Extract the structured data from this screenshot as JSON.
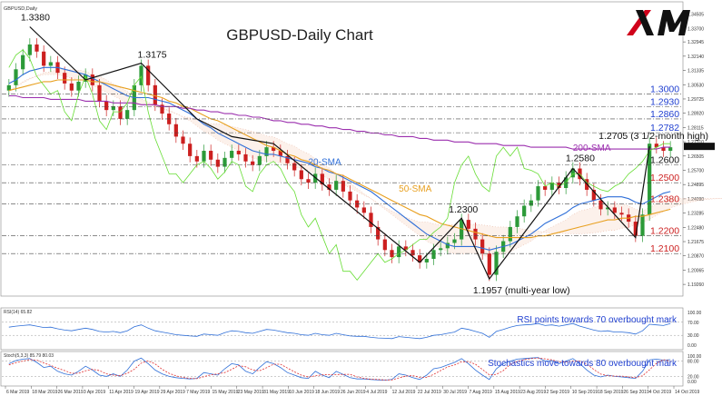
{
  "window": {
    "symbol_tag": "GBPUSD,Daily"
  },
  "chart_title": "GBPUSD-Daily Chart",
  "brand": {
    "name": "XM",
    "color": "#000000",
    "accent": "#d0021b"
  },
  "chart_data": [
    {
      "type": "line",
      "panel": "price",
      "title": "GBPUSD-Daily Chart",
      "x_tick_labels": [
        "6 Mar 2019",
        "18 Mar 2019",
        "26 Mar 2019",
        "3 Apr 2019",
        "11 Apr 2019",
        "19 Apr 2019",
        "29 Apr 2019",
        "7 May 2019",
        "15 May 2019",
        "23 May 2019",
        "31 May 2019",
        "10 Jun 2019",
        "18 Jun 2019",
        "26 Jun 2019",
        "4 Jul 2019",
        "12 Jul 2019",
        "22 Jul 2019",
        "30 Jul 2019",
        "7 Aug 2019",
        "15 Aug 2019",
        "23 Aug 2019",
        "2 Sep 2019",
        "10 Sep 2019",
        "18 Sep 2019",
        "26 Sep 2019",
        "4 Oct 2019",
        "14 Oct 2019"
      ],
      "y_tick_labels": [
        "1.34505",
        "1.33700",
        "1.32945",
        "1.32140",
        "1.31335",
        "1.30530",
        "1.29725",
        "1.28920",
        "1.28115",
        "1.27310",
        "1.26505",
        "1.25700",
        "1.24895",
        "1.24090",
        "1.23285",
        "1.22480",
        "1.21675",
        "1.20870",
        "1.20065",
        "1.19260"
      ],
      "ylim": [
        1.186,
        1.349
      ],
      "grid": false,
      "close": [
        1.305,
        1.314,
        1.322,
        1.328,
        1.324,
        1.316,
        1.318,
        1.312,
        1.306,
        1.302,
        1.307,
        1.311,
        1.305,
        1.296,
        1.291,
        1.293,
        1.286,
        1.291,
        1.305,
        1.316,
        1.305,
        1.294,
        1.289,
        1.283,
        1.276,
        1.272,
        1.265,
        1.262,
        1.268,
        1.263,
        1.259,
        1.264,
        1.268,
        1.266,
        1.262,
        1.26,
        1.265,
        1.27,
        1.268,
        1.265,
        1.261,
        1.257,
        1.252,
        1.25,
        1.255,
        1.249,
        1.246,
        1.251,
        1.245,
        1.24,
        1.236,
        1.233,
        1.225,
        1.218,
        1.212,
        1.208,
        1.214,
        1.212,
        1.209,
        1.205,
        1.207,
        1.212,
        1.213,
        1.216,
        1.218,
        1.229,
        1.224,
        1.218,
        1.21,
        1.198,
        1.211,
        1.217,
        1.225,
        1.231,
        1.237,
        1.24,
        1.248,
        1.246,
        1.25,
        1.247,
        1.253,
        1.258,
        1.252,
        1.246,
        1.24,
        1.235,
        1.236,
        1.233,
        1.232,
        1.228,
        1.22,
        1.232,
        1.272,
        1.27,
        1.268,
        1.27
      ],
      "series": [
        {
          "name": "20-SMA",
          "color": "#2f6fd8",
          "values": [
            1.306,
            1.308,
            1.311,
            1.313,
            1.314,
            1.315,
            1.315,
            1.315,
            1.314,
            1.313,
            1.312,
            1.311,
            1.309,
            1.307,
            1.305,
            1.303,
            1.301,
            1.299,
            1.298,
            1.298,
            1.298,
            1.297,
            1.296,
            1.295,
            1.293,
            1.291,
            1.289,
            1.286,
            1.283,
            1.281,
            1.278,
            1.276,
            1.274,
            1.272,
            1.27,
            1.268,
            1.267,
            1.266,
            1.266,
            1.265,
            1.264,
            1.263,
            1.262,
            1.261,
            1.259,
            1.258,
            1.256,
            1.255,
            1.253,
            1.251,
            1.249,
            1.247,
            1.245,
            1.242,
            1.239,
            1.236,
            1.233,
            1.23,
            1.227,
            1.224,
            1.221,
            1.219,
            1.217,
            1.215,
            1.214,
            1.214,
            1.214,
            1.214,
            1.213,
            1.212,
            1.213,
            1.214,
            1.215,
            1.217,
            1.219,
            1.221,
            1.224,
            1.227,
            1.229,
            1.231,
            1.233,
            1.236,
            1.238,
            1.239,
            1.24,
            1.241,
            1.242,
            1.242,
            1.242,
            1.241,
            1.239,
            1.238,
            1.24,
            1.242,
            1.244,
            1.245
          ]
        },
        {
          "name": "50-SMA",
          "color": "#e8a020",
          "values": [
            1.302,
            1.303,
            1.304,
            1.305,
            1.306,
            1.307,
            1.307,
            1.308,
            1.308,
            1.308,
            1.308,
            1.308,
            1.307,
            1.307,
            1.306,
            1.305,
            1.304,
            1.303,
            1.302,
            1.301,
            1.3,
            1.299,
            1.298,
            1.296,
            1.295,
            1.293,
            1.292,
            1.29,
            1.288,
            1.286,
            1.285,
            1.283,
            1.281,
            1.279,
            1.277,
            1.275,
            1.273,
            1.271,
            1.27,
            1.268,
            1.266,
            1.265,
            1.263,
            1.262,
            1.26,
            1.258,
            1.257,
            1.255,
            1.254,
            1.252,
            1.25,
            1.248,
            1.246,
            1.244,
            1.242,
            1.24,
            1.238,
            1.236,
            1.234,
            1.232,
            1.231,
            1.229,
            1.227,
            1.226,
            1.225,
            1.224,
            1.223,
            1.222,
            1.221,
            1.22,
            1.219,
            1.219,
            1.219,
            1.219,
            1.219,
            1.219,
            1.22,
            1.22,
            1.221,
            1.222,
            1.223,
            1.224,
            1.225,
            1.226,
            1.227,
            1.228,
            1.229,
            1.229,
            1.23,
            1.23,
            1.231,
            1.231,
            1.232,
            1.233,
            1.234,
            1.235
          ]
        },
        {
          "name": "200-SMA",
          "color": "#9b2fae",
          "values": [
            1.299,
            1.299,
            1.298,
            1.298,
            1.298,
            1.298,
            1.297,
            1.297,
            1.297,
            1.297,
            1.297,
            1.296,
            1.296,
            1.296,
            1.296,
            1.295,
            1.295,
            1.295,
            1.295,
            1.294,
            1.294,
            1.294,
            1.293,
            1.293,
            1.293,
            1.292,
            1.292,
            1.291,
            1.291,
            1.29,
            1.29,
            1.289,
            1.289,
            1.288,
            1.288,
            1.287,
            1.287,
            1.286,
            1.285,
            1.285,
            1.284,
            1.284,
            1.283,
            1.283,
            1.282,
            1.282,
            1.281,
            1.281,
            1.28,
            1.28,
            1.279,
            1.279,
            1.278,
            1.278,
            1.277,
            1.277,
            1.276,
            1.276,
            1.276,
            1.275,
            1.275,
            1.274,
            1.274,
            1.274,
            1.273,
            1.273,
            1.273,
            1.272,
            1.272,
            1.272,
            1.272,
            1.271,
            1.271,
            1.271,
            1.271,
            1.27,
            1.27,
            1.27,
            1.27,
            1.27,
            1.27,
            1.269,
            1.269,
            1.269,
            1.269,
            1.269,
            1.269,
            1.269,
            1.269,
            1.269,
            1.269,
            1.269,
            1.269,
            1.269,
            1.27,
            1.27
          ]
        },
        {
          "name": "",
          "color": "#66dd33",
          "values": [
            1.315,
            1.322,
            1.325,
            1.32,
            1.31,
            1.305,
            1.3,
            1.302,
            1.29,
            1.285,
            1.3,
            1.31,
            1.3,
            1.285,
            1.28,
            1.29,
            1.29,
            1.295,
            1.305,
            1.31,
            1.29,
            1.275,
            1.265,
            1.255,
            1.255,
            1.25,
            1.255,
            1.26,
            1.262,
            1.258,
            1.252,
            1.256,
            1.262,
            1.26,
            1.248,
            1.245,
            1.255,
            1.26,
            1.262,
            1.258,
            1.25,
            1.245,
            1.232,
            1.225,
            1.23,
            1.22,
            1.21,
            1.215,
            1.2,
            1.2,
            1.195,
            1.2,
            1.205,
            1.21,
            1.205,
            1.207,
            1.21,
            1.212,
            1.215,
            1.218,
            1.218,
            1.222,
            1.225,
            1.23,
            1.25,
            1.26,
            1.265,
            1.255,
            1.248,
            1.245,
            1.265,
            1.27,
            1.265,
            1.27,
            1.258,
            1.257,
            1.255,
            1.248,
            1.25,
            1.248,
            1.25,
            1.255,
            1.255,
            1.25,
            1.248,
            1.246,
            1.245,
            1.248,
            1.25,
            1.255,
            1.258,
            1.262,
            1.268,
            1.27,
            1.272,
            1.272
          ]
        }
      ],
      "horizontal_levels": [
        {
          "value": 1.3,
          "label": "1.3000"
        },
        {
          "value": 1.293,
          "label": "1.2930"
        },
        {
          "value": 1.286,
          "label": "1.2860"
        },
        {
          "value": 1.2782,
          "label": "1.2782"
        },
        {
          "value": 1.26,
          "label": "1.2600"
        },
        {
          "value": 1.25,
          "label": "1.2500"
        },
        {
          "value": 1.238,
          "label": "1.2380"
        },
        {
          "value": 1.22,
          "label": "1.2200"
        },
        {
          "value": 1.21,
          "label": "1.2100"
        }
      ],
      "swing_points": [
        {
          "label": "1.3380",
          "value": 1.338,
          "index": 3
        },
        {
          "label": "1.3175",
          "value": 1.3175,
          "index": 19
        },
        {
          "label": "1.2300",
          "value": 1.23,
          "index": 65
        },
        {
          "label": "1.2580",
          "value": 1.258,
          "index": 81
        },
        {
          "label": "1.1957 (multi-year low)",
          "value": 1.1957,
          "index": 69
        },
        {
          "label": "1.2705 (3 1/2-month high)",
          "value": 1.2705,
          "index": 92
        }
      ],
      "annotations": [
        "20-SMA",
        "50-SMA",
        "200-SMA"
      ]
    },
    {
      "type": "line",
      "panel": "rsi",
      "title": "RSI(14) 65.82",
      "y_tick_labels": [
        "100.00",
        "70.00",
        "30.00",
        "0.00"
      ],
      "ylim": [
        0,
        100
      ],
      "annotation": "RSI points towards 70 overbought mark",
      "series": [
        {
          "name": "RSI(14)",
          "color": "#2f6fd8",
          "values": [
            55,
            58,
            60,
            62,
            58,
            54,
            55,
            50,
            46,
            44,
            48,
            52,
            48,
            42,
            40,
            42,
            38,
            44,
            56,
            62,
            52,
            44,
            40,
            36,
            32,
            30,
            28,
            27,
            34,
            32,
            30,
            38,
            44,
            42,
            38,
            36,
            42,
            48,
            46,
            42,
            38,
            36,
            32,
            30,
            36,
            32,
            30,
            36,
            32,
            28,
            27,
            27,
            24,
            22,
            21,
            20,
            26,
            24,
            22,
            20,
            24,
            30,
            32,
            36,
            40,
            52,
            48,
            42,
            36,
            24,
            42,
            48,
            55,
            60,
            62,
            63,
            66,
            60,
            62,
            58,
            62,
            66,
            58,
            52,
            46,
            42,
            44,
            40,
            40,
            38,
            34,
            44,
            64,
            62,
            60,
            65.82
          ]
        }
      ]
    },
    {
      "type": "line",
      "panel": "stochastics",
      "title": "Stoch(5,3,3) 85.79 80.03",
      "y_tick_labels": [
        "100.00",
        "80.00",
        "20.00",
        "0.00"
      ],
      "ylim": [
        0,
        100
      ],
      "annotation": "Stochastics move towards 80 overbought mark",
      "series": [
        {
          "name": "Stoch %K",
          "color": "#2f6fd8",
          "values": [
            70,
            82,
            88,
            90,
            75,
            55,
            60,
            40,
            30,
            25,
            40,
            60,
            45,
            25,
            20,
            30,
            20,
            45,
            80,
            92,
            70,
            45,
            30,
            20,
            15,
            12,
            10,
            12,
            35,
            30,
            25,
            50,
            70,
            65,
            40,
            30,
            55,
            78,
            70,
            55,
            35,
            25,
            15,
            12,
            40,
            25,
            15,
            40,
            28,
            15,
            10,
            10,
            8,
            6,
            5,
            8,
            30,
            25,
            15,
            8,
            25,
            50,
            55,
            65,
            75,
            90,
            70,
            45,
            25,
            8,
            50,
            70,
            80,
            88,
            90,
            92,
            94,
            80,
            82,
            70,
            80,
            90,
            70,
            45,
            25,
            18,
            25,
            20,
            18,
            15,
            12,
            40,
            85,
            88,
            84,
            85.79
          ]
        },
        {
          "name": "Stoch %D",
          "color": "#e03030",
          "values": [
            65,
            74,
            80,
            86,
            84,
            73,
            63,
            52,
            43,
            32,
            32,
            42,
            48,
            43,
            30,
            25,
            23,
            32,
            48,
            72,
            81,
            69,
            48,
            32,
            22,
            16,
            12,
            11,
            19,
            26,
            30,
            35,
            48,
            62,
            58,
            45,
            42,
            54,
            68,
            68,
            53,
            38,
            25,
            17,
            22,
            26,
            27,
            27,
            28,
            28,
            18,
            12,
            9,
            8,
            6,
            6,
            14,
            21,
            23,
            16,
            16,
            28,
            43,
            57,
            65,
            77,
            78,
            68,
            47,
            26,
            28,
            43,
            67,
            79,
            86,
            90,
            92,
            89,
            85,
            77,
            77,
            80,
            80,
            68,
            47,
            29,
            23,
            21,
            21,
            18,
            15,
            22,
            46,
            71,
            86,
            80.03
          ]
        }
      ]
    }
  ]
}
